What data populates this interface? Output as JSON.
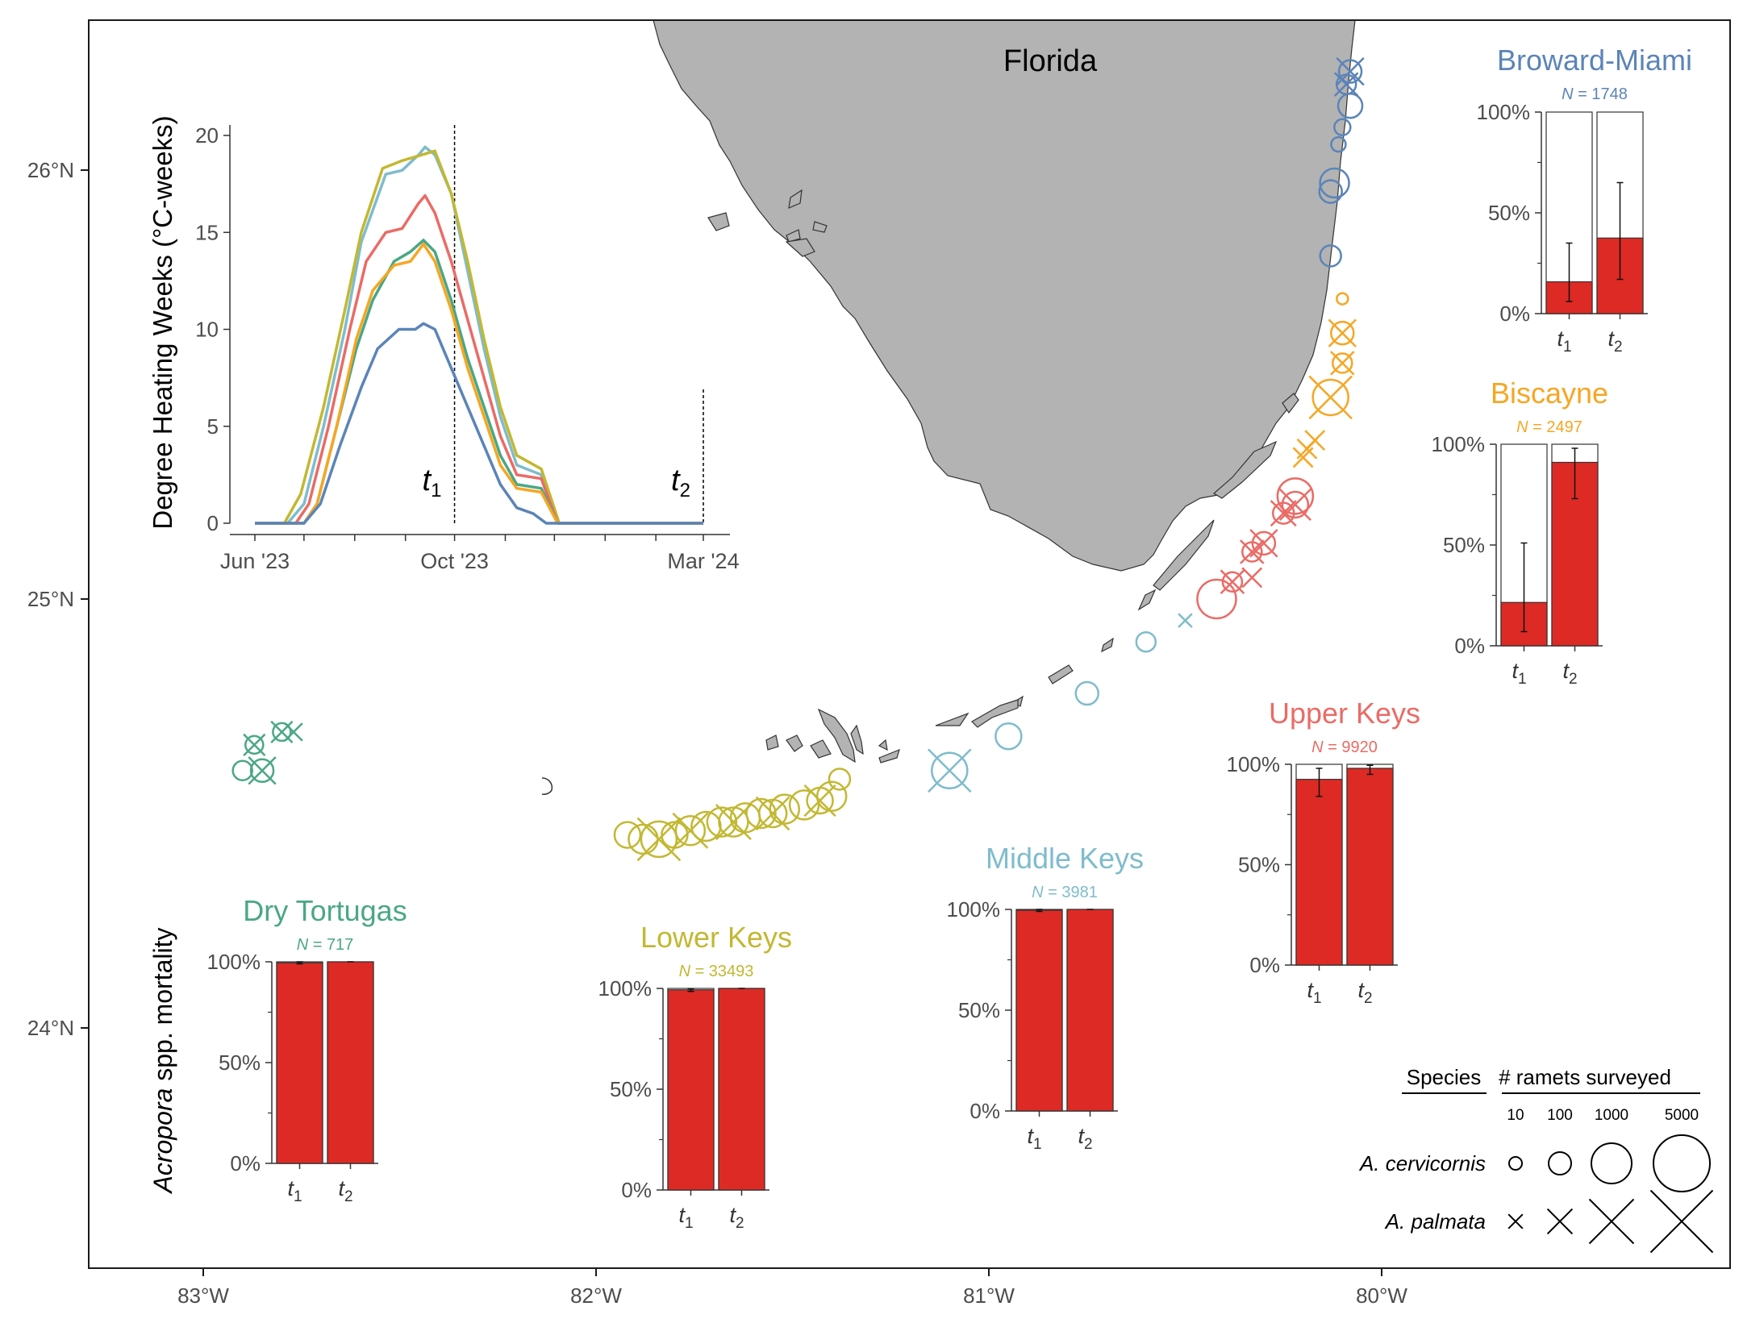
{
  "map": {
    "region_label": "Florida",
    "y_ticks": [
      "26°N",
      "25°N",
      "24°N"
    ],
    "x_ticks": [
      "83°W",
      "82°W",
      "81°W",
      "80°W"
    ],
    "lat_range": [
      23.45,
      26.4
    ],
    "lon_range": [
      -83.3,
      -79.15
    ],
    "land_color": "#b3b3b3"
  },
  "regions": [
    {
      "id": "broward-miami",
      "name": "Broward-Miami",
      "color": "#5b84b8",
      "N_label": "N = 1748",
      "t1": 15.8,
      "t1_err": [
        6,
        35
      ],
      "t2": 37.5,
      "t2_err": [
        17,
        65
      ]
    },
    {
      "id": "biscayne",
      "name": "Biscayne",
      "color": "#f6a623",
      "N_label": "N = 2497",
      "t1": 21.5,
      "t1_err": [
        7,
        51
      ],
      "t2": 91,
      "t2_err": [
        73,
        98
      ]
    },
    {
      "id": "upper-keys",
      "name": "Upper Keys",
      "color": "#ea6b66",
      "N_label": "N = 9920",
      "t1": 92.5,
      "t1_err": [
        84,
        98
      ],
      "t2": 98,
      "t2_err": [
        95,
        99.5
      ]
    },
    {
      "id": "middle-keys",
      "name": "Middle Keys",
      "color": "#7fbccc",
      "N_label": "N = 3981",
      "t1": 99.6,
      "t1_err": [
        99,
        100
      ],
      "t2": 100,
      "t2_err": [
        100,
        100
      ]
    },
    {
      "id": "lower-keys",
      "name": "Lower Keys",
      "color": "#c2b832",
      "N_label": "N = 33493",
      "t1": 99.3,
      "t1_err": [
        98.5,
        99.8
      ],
      "t2": 100,
      "t2_err": [
        100,
        100
      ]
    },
    {
      "id": "dry-tortugas",
      "name": "Dry Tortugas",
      "color": "#4aa785",
      "N_label": "N = 717",
      "t1": 99.5,
      "t1_err": [
        99,
        100
      ],
      "t2": 100,
      "t2_err": [
        100,
        100
      ]
    }
  ],
  "bar_panel": {
    "y_ticks": [
      "0%",
      "50%",
      "100%"
    ],
    "x_categories": [
      "t1",
      "t2"
    ],
    "ylabel_italic": "Acropora",
    "ylabel_rest": " spp. mortality",
    "mortality_color": "#dd2a25"
  },
  "chart_data": {
    "type": "line",
    "xlabel": "",
    "ylabel": "Degree Heating Weeks (°C-weeks)",
    "x_tick_labels": [
      "Jun '23",
      "Oct '23",
      "Mar '24"
    ],
    "y_ticks": [
      0,
      5,
      10,
      15,
      20
    ],
    "ylim": [
      0,
      20
    ],
    "markers": [
      {
        "label": "t1",
        "day": 122
      },
      {
        "label": "t2",
        "day": 274
      }
    ],
    "series": [
      {
        "color": "#7fbccc",
        "points": [
          [
            0,
            0
          ],
          [
            20,
            0
          ],
          [
            30,
            1
          ],
          [
            42,
            5
          ],
          [
            55,
            10
          ],
          [
            65,
            14.5
          ],
          [
            80,
            18
          ],
          [
            90,
            18.2
          ],
          [
            100,
            19
          ],
          [
            104,
            19.4
          ],
          [
            110,
            19
          ],
          [
            120,
            17
          ],
          [
            130,
            13
          ],
          [
            140,
            9
          ],
          [
            150,
            5.5
          ],
          [
            160,
            3
          ],
          [
            175,
            2.5
          ],
          [
            185,
            0
          ],
          [
            274,
            0
          ]
        ]
      },
      {
        "color": "#c2b832",
        "points": [
          [
            0,
            0
          ],
          [
            18,
            0
          ],
          [
            28,
            1.5
          ],
          [
            42,
            6
          ],
          [
            55,
            11
          ],
          [
            65,
            15
          ],
          [
            78,
            18.3
          ],
          [
            90,
            18.7
          ],
          [
            102,
            19
          ],
          [
            110,
            19.2
          ],
          [
            120,
            17
          ],
          [
            130,
            13.5
          ],
          [
            140,
            9.5
          ],
          [
            150,
            6
          ],
          [
            160,
            3.5
          ],
          [
            175,
            2.8
          ],
          [
            186,
            0
          ],
          [
            274,
            0
          ]
        ]
      },
      {
        "color": "#ea6b66",
        "points": [
          [
            0,
            0
          ],
          [
            25,
            0
          ],
          [
            33,
            1
          ],
          [
            45,
            5
          ],
          [
            58,
            10
          ],
          [
            68,
            13.5
          ],
          [
            80,
            15
          ],
          [
            90,
            15.2
          ],
          [
            100,
            16.5
          ],
          [
            104,
            16.9
          ],
          [
            110,
            16
          ],
          [
            120,
            13.5
          ],
          [
            130,
            10.5
          ],
          [
            140,
            7.5
          ],
          [
            150,
            4.5
          ],
          [
            160,
            2.5
          ],
          [
            175,
            2.3
          ],
          [
            185,
            0
          ],
          [
            274,
            0
          ]
        ]
      },
      {
        "color": "#4aa785",
        "points": [
          [
            0,
            0
          ],
          [
            30,
            0
          ],
          [
            38,
            1
          ],
          [
            50,
            5
          ],
          [
            62,
            9
          ],
          [
            72,
            11.5
          ],
          [
            85,
            13.5
          ],
          [
            95,
            14
          ],
          [
            103,
            14.6
          ],
          [
            110,
            14
          ],
          [
            120,
            11.5
          ],
          [
            130,
            8.5
          ],
          [
            140,
            6
          ],
          [
            150,
            3.5
          ],
          [
            160,
            2
          ],
          [
            175,
            1.8
          ],
          [
            185,
            0
          ],
          [
            274,
            0
          ]
        ]
      },
      {
        "color": "#f6a623",
        "points": [
          [
            0,
            0
          ],
          [
            30,
            0
          ],
          [
            38,
            1
          ],
          [
            50,
            5
          ],
          [
            62,
            9.5
          ],
          [
            72,
            12
          ],
          [
            85,
            13.3
          ],
          [
            95,
            13.5
          ],
          [
            103,
            14.4
          ],
          [
            110,
            13.5
          ],
          [
            120,
            11
          ],
          [
            130,
            8
          ],
          [
            140,
            5.5
          ],
          [
            150,
            3
          ],
          [
            160,
            1.8
          ],
          [
            175,
            1.6
          ],
          [
            185,
            0
          ],
          [
            274,
            0
          ]
        ]
      },
      {
        "color": "#5b84b8",
        "points": [
          [
            0,
            0
          ],
          [
            30,
            0
          ],
          [
            40,
            1
          ],
          [
            52,
            4
          ],
          [
            65,
            7
          ],
          [
            75,
            9
          ],
          [
            88,
            10
          ],
          [
            98,
            10
          ],
          [
            103,
            10.3
          ],
          [
            110,
            10
          ],
          [
            120,
            8
          ],
          [
            130,
            6
          ],
          [
            140,
            4
          ],
          [
            150,
            2
          ],
          [
            160,
            0.8
          ],
          [
            170,
            0.5
          ],
          [
            178,
            0
          ],
          [
            274,
            0
          ]
        ]
      }
    ]
  },
  "markers": {
    "broward": [
      {
        "lon": -80.08,
        "lat": 26.23,
        "r": 14,
        "x": 1
      },
      {
        "lon": -80.09,
        "lat": 26.2,
        "r": 12,
        "x": 1
      },
      {
        "lon": -80.08,
        "lat": 26.15,
        "r": 15,
        "x": 0
      },
      {
        "lon": -80.1,
        "lat": 26.1,
        "r": 10,
        "x": 0
      },
      {
        "lon": -80.11,
        "lat": 26.06,
        "r": 9,
        "x": 0
      },
      {
        "lon": -80.12,
        "lat": 25.97,
        "r": 18,
        "x": 0
      },
      {
        "lon": -80.13,
        "lat": 25.95,
        "r": 14,
        "x": 0
      },
      {
        "lon": -80.13,
        "lat": 25.8,
        "r": 13,
        "x": 0
      }
    ],
    "biscayne": [
      {
        "lon": -80.1,
        "lat": 25.7,
        "r": 7,
        "x": 0
      },
      {
        "lon": -80.1,
        "lat": 25.62,
        "r": 14,
        "x": 1
      },
      {
        "lon": -80.1,
        "lat": 25.55,
        "r": 12,
        "x": 1
      },
      {
        "lon": -80.13,
        "lat": 25.47,
        "r": 22,
        "x": 1
      },
      {
        "lon": -80.17,
        "lat": 25.37,
        "r": 10,
        "x": 1
      },
      {
        "lon": -80.19,
        "lat": 25.35,
        "r": 10,
        "x": 1
      },
      {
        "lon": -80.2,
        "lat": 25.33,
        "r": 10,
        "x": 1
      }
    ],
    "upper": [
      {
        "lon": -80.22,
        "lat": 25.24,
        "r": 22,
        "x": 0
      },
      {
        "lon": -80.22,
        "lat": 25.22,
        "r": 16,
        "x": 1
      },
      {
        "lon": -80.25,
        "lat": 25.2,
        "r": 13,
        "x": 1
      },
      {
        "lon": -80.3,
        "lat": 25.13,
        "r": 14,
        "x": 1
      },
      {
        "lon": -80.33,
        "lat": 25.11,
        "r": 12,
        "x": 1
      },
      {
        "lon": -80.42,
        "lat": 25.0,
        "r": 24,
        "x": 0
      },
      {
        "lon": -80.38,
        "lat": 25.04,
        "r": 12,
        "x": 1
      },
      {
        "lon": -80.33,
        "lat": 25.05,
        "r": 10,
        "x": 1
      }
    ],
    "middle": [
      {
        "lon": -80.5,
        "lat": 24.95,
        "r": 7,
        "x": 1
      },
      {
        "lon": -80.6,
        "lat": 24.9,
        "r": 12,
        "x": 0
      },
      {
        "lon": -80.75,
        "lat": 24.78,
        "r": 14,
        "x": 0
      },
      {
        "lon": -80.95,
        "lat": 24.68,
        "r": 16,
        "x": 0
      },
      {
        "lon": -81.1,
        "lat": 24.6,
        "r": 22,
        "x": 1
      }
    ],
    "lower": [
      {
        "lon": -81.38,
        "lat": 24.58,
        "r": 13,
        "x": 0
      },
      {
        "lon": -81.4,
        "lat": 24.54,
        "r": 18,
        "x": 0
      },
      {
        "lon": -81.43,
        "lat": 24.53,
        "r": 16,
        "x": 1
      },
      {
        "lon": -81.47,
        "lat": 24.52,
        "r": 18,
        "x": 0
      },
      {
        "lon": -81.52,
        "lat": 24.51,
        "r": 18,
        "x": 0
      },
      {
        "lon": -81.55,
        "lat": 24.5,
        "r": 17,
        "x": 1
      },
      {
        "lon": -81.58,
        "lat": 24.5,
        "r": 18,
        "x": 0
      },
      {
        "lon": -81.62,
        "lat": 24.49,
        "r": 18,
        "x": 0
      },
      {
        "lon": -81.65,
        "lat": 24.48,
        "r": 18,
        "x": 1
      },
      {
        "lon": -81.68,
        "lat": 24.48,
        "r": 18,
        "x": 0
      },
      {
        "lon": -81.72,
        "lat": 24.47,
        "r": 18,
        "x": 0
      },
      {
        "lon": -81.76,
        "lat": 24.46,
        "r": 18,
        "x": 1
      },
      {
        "lon": -81.8,
        "lat": 24.45,
        "r": 16,
        "x": 0
      },
      {
        "lon": -81.84,
        "lat": 24.44,
        "r": 22,
        "x": 1
      },
      {
        "lon": -81.88,
        "lat": 24.44,
        "r": 18,
        "x": 0
      },
      {
        "lon": -81.92,
        "lat": 24.45,
        "r": 16,
        "x": 0
      }
    ],
    "tortugas": [
      {
        "lon": -82.8,
        "lat": 24.69,
        "r": 11,
        "x": 1
      },
      {
        "lon": -82.77,
        "lat": 24.69,
        "r": 9,
        "x": 1
      },
      {
        "lon": -82.87,
        "lat": 24.66,
        "r": 11,
        "x": 1
      },
      {
        "lon": -82.9,
        "lat": 24.6,
        "r": 12,
        "x": 0
      },
      {
        "lon": -82.85,
        "lat": 24.6,
        "r": 14,
        "x": 1
      }
    ]
  },
  "legend": {
    "species_title": "Species",
    "size_title": "# ramets surveyed",
    "sizes": [
      "10",
      "100",
      "1000",
      "5000"
    ],
    "species": [
      {
        "name": "A. cervicornis",
        "marker": "circle"
      },
      {
        "name": "A. palmata",
        "marker": "cross"
      }
    ]
  }
}
